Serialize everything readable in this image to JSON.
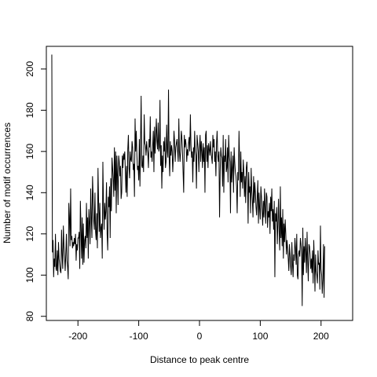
{
  "chart_data": {
    "type": "line",
    "title": "",
    "xlabel": "Distance to peak centre",
    "ylabel": "Number of motif occurrences",
    "xlim": [
      -252,
      252
    ],
    "ylim": [
      78,
      211
    ],
    "xticks": [
      -200,
      -100,
      0,
      100,
      200
    ],
    "yticks": [
      80,
      100,
      120,
      140,
      160,
      180,
      200
    ],
    "grid": false,
    "x_start": -243,
    "x_step": 1,
    "series": [
      {
        "color": "#000000",
        "values": [
          207,
          111,
          117,
          99,
          108,
          104,
          120,
          103,
          102,
          112,
          100,
          116,
          108,
          105,
          102,
          101,
          122,
          110,
          103,
          124,
          114,
          109,
          102,
          110,
          120,
          107,
          104,
          98,
          135,
          128,
          114,
          142,
          117,
          119,
          113,
          116,
          114,
          118,
          115,
          120,
          107,
          115,
          112,
          118,
          118,
          121,
          103,
          136,
          123,
          108,
          128,
          105,
          125,
          106,
          117,
          119,
          113,
          135,
          118,
          128,
          108,
          132,
          126,
          115,
          142,
          128,
          118,
          148,
          138,
          126,
          122,
          140,
          121,
          117,
          130,
          113,
          152,
          135,
          121,
          135,
          118,
          123,
          125,
          108,
          155,
          135,
          122,
          135,
          127,
          131,
          145,
          120,
          112,
          138,
          133,
          143,
          118,
          147,
          131,
          157,
          152,
          146,
          138,
          162,
          141,
          160,
          130,
          158,
          148,
          134,
          158,
          155,
          148,
          153,
          137,
          140,
          158,
          152,
          159,
          156,
          160,
          150,
          140,
          153,
          138,
          161,
          168,
          152,
          147,
          160,
          156,
          155,
          165,
          162,
          151,
          154,
          138,
          176,
          160,
          170,
          158,
          151,
          153,
          146,
          166,
          143,
          164,
          187,
          153,
          152,
          158,
          150,
          178,
          164,
          163,
          158,
          165,
          161,
          159,
          152,
          166,
          162,
          177,
          157,
          160,
          155,
          163,
          170,
          150,
          172,
          159,
          168,
          176,
          165,
          161,
          174,
          160,
          162,
          185,
          153,
          163,
          142,
          158,
          150,
          165,
          160,
          167,
          152,
          155,
          173,
          160,
          157,
          190,
          158,
          148,
          165,
          158,
          163,
          160,
          150,
          158,
          170,
          165,
          155,
          162,
          164,
          166,
          160,
          155,
          176,
          160,
          155,
          160,
          170,
          167,
          160,
          150,
          140,
          168,
          162,
          166,
          163,
          155,
          161,
          158,
          164,
          167,
          160,
          178,
          163,
          157,
          160,
          145,
          162,
          155,
          170,
          160,
          158,
          142,
          168,
          164,
          160,
          150,
          162,
          168,
          155,
          165,
          160,
          152,
          164,
          155,
          162,
          140,
          168,
          170,
          155,
          163,
          152,
          164,
          161,
          158,
          165,
          160,
          157,
          154,
          168,
          162,
          166,
          155,
          160,
          148,
          164,
          170,
          158,
          155,
          160,
          128,
          150,
          162,
          158,
          157,
          143,
          168,
          140,
          158,
          155,
          166,
          150,
          152,
          162,
          145,
          168,
          158,
          155,
          130,
          160,
          145,
          152,
          158,
          140,
          162,
          155,
          150,
          148,
          143,
          130,
          150,
          146,
          170,
          155,
          138,
          160,
          145,
          150,
          142,
          156,
          150,
          138,
          148,
          135,
          152,
          155,
          146,
          125,
          150,
          140,
          143,
          130,
          152,
          141,
          136,
          128,
          148,
          135,
          145,
          140,
          133,
          129,
          138,
          146,
          125,
          140,
          132,
          127,
          143,
          138,
          131,
          124,
          136,
          128,
          142,
          132,
          125,
          140,
          138,
          123,
          131,
          128,
          135,
          120,
          138,
          131,
          142,
          126,
          132,
          122,
          136,
          99,
          130,
          126,
          133,
          115,
          125,
          137,
          121,
          112,
          143,
          118,
          128,
          114,
          132,
          108,
          125,
          116,
          127,
          120,
          110,
          117,
          113,
          108,
          102,
          115,
          110,
          104,
          100,
          116,
          106,
          99,
          110,
          107,
          118,
          113,
          105,
          120,
          100,
          98,
          110,
          112,
          109,
          118,
          115,
          110,
          85,
          123,
          100,
          114,
          106,
          118,
          111,
          101,
          121,
          107,
          97,
          115,
          114,
          110,
          103,
          108,
          101,
          112,
          96,
          117,
          107,
          92,
          110,
          102,
          100,
          96,
          112,
          105,
          106,
          93,
          124,
          103,
          100,
          91,
          98,
          115,
          89,
          114
        ]
      }
    ]
  }
}
